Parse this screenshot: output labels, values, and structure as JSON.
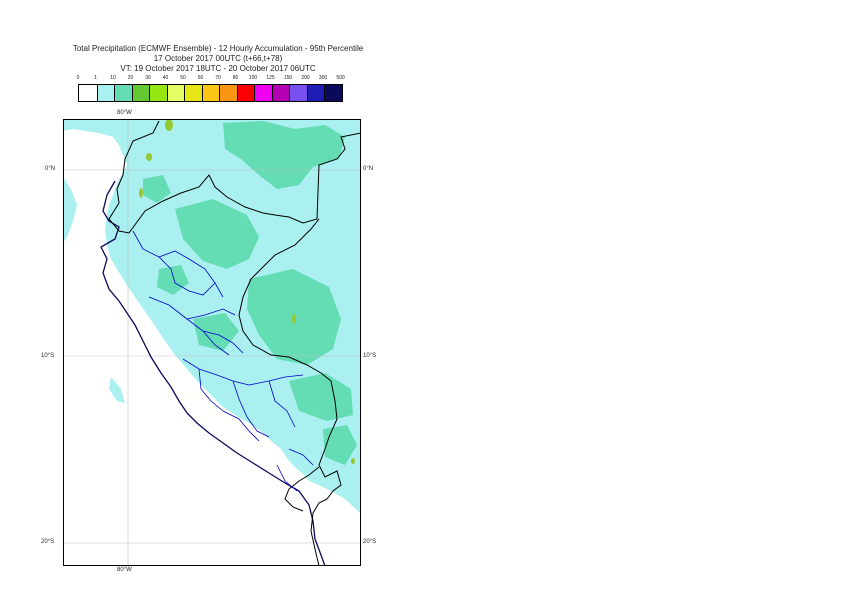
{
  "title": {
    "line1": "Total Precipitation (ECMWF Ensemble) - 12 Hourly Accumulation - 95th Percentile",
    "line2": "17 October 2017 00UTC (t+66,t+78)",
    "line3": "VT: 19 October 2017 18UTC - 20 October 2017 06UTC"
  },
  "legend": {
    "thresholds": [
      "0",
      "1",
      "10",
      "20",
      "30",
      "40",
      "50",
      "60",
      "70",
      "80",
      "100",
      "125",
      "150",
      "200",
      "300",
      "500"
    ],
    "colors": [
      "#ffffff",
      "#aaf0f0",
      "#64dcb4",
      "#64c832",
      "#96e614",
      "#e6ff64",
      "#e6e614",
      "#fac814",
      "#fa9614",
      "#fa0000",
      "#f000f0",
      "#b400b4",
      "#7850f0",
      "#1e1eb4",
      "#0a0a5a"
    ]
  },
  "map": {
    "colors": {
      "land": "#ffffff",
      "ocean": "#ffffff",
      "light_precip": "#aaf0f0",
      "moderate_precip": "#64dcb4",
      "heavy_precip": "#96c832",
      "border": "#000000",
      "admin": "#0000cc",
      "coast": "#0a0a5a",
      "grid": "#bfbfbf"
    },
    "labels": {
      "lon_top": "80°W",
      "lon_bottom": "80°W",
      "lat_0_left": "0°N",
      "lat_0_right": "0°N",
      "lat_10_left": "10°S",
      "lat_10_right": "10°S",
      "lat_20_left": "20°S",
      "lat_20_right": "20°S"
    }
  }
}
